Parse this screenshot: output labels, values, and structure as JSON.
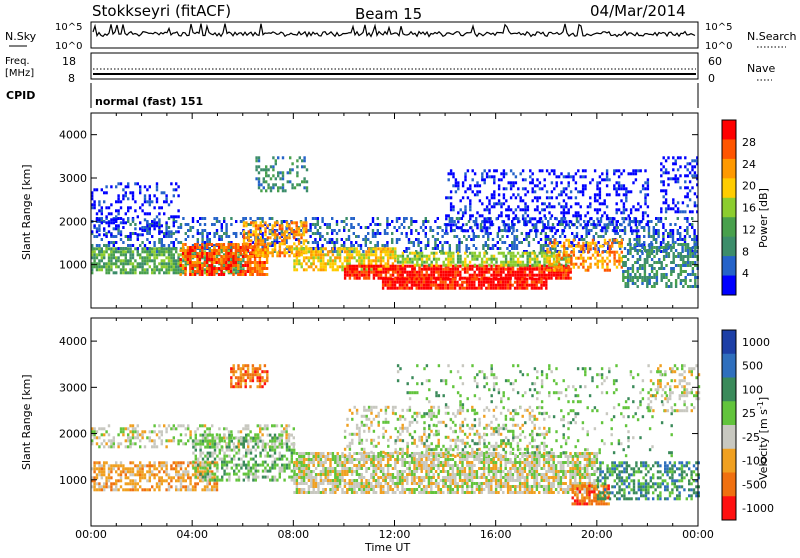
{
  "header": {
    "station": "Stokkseyri (fitACF)",
    "beam": "Beam 15",
    "date": "04/Mar/2014"
  },
  "noise_panel": {
    "left_label": "N.Sky",
    "right_label": "N.Search",
    "left_ticks": [
      "10^5",
      "10^0"
    ],
    "right_ticks": [
      "10^5",
      "10^0"
    ]
  },
  "freq_panel": {
    "left_label_1": "Freq.",
    "left_label_2": "[MHz]",
    "right_label": "Nave",
    "left_ticks": [
      "18",
      "8"
    ],
    "right_ticks": [
      "60",
      "0"
    ]
  },
  "cpid_panel": {
    "label": "CPID",
    "value": "normal (fast) 151"
  },
  "colors": {
    "power": [
      "#0000ff",
      "#2563c9",
      "#3c8d6a",
      "#48a04c",
      "#8ccd2f",
      "#ffcc00",
      "#ff9900",
      "#ff5500",
      "#ff0000"
    ],
    "velocity": [
      "#1d3fa6",
      "#2f6fbd",
      "#3a8a5a",
      "#62c43c",
      "#c8c8c0",
      "#f0a020",
      "#f07010",
      "#ff1010"
    ]
  },
  "chart_data": [
    {
      "type": "heatmap",
      "name": "power",
      "ylabel": "Slant Range [km]",
      "ylim": [
        0,
        4500
      ],
      "yticks": [
        1000,
        2000,
        3000,
        4000
      ],
      "xlim": [
        0,
        24
      ],
      "x_ticks": [
        "00:00",
        "04:00",
        "08:00",
        "12:00",
        "16:00",
        "20:00",
        "00:00"
      ],
      "colorbar": {
        "label": "Power [dB]",
        "ticks": [
          "4",
          "8",
          "12",
          "16",
          "20",
          "24",
          "28"
        ],
        "range": [
          0,
          30
        ]
      },
      "regions": [
        {
          "t0": 0.0,
          "t1": 24.0,
          "r0": 1300,
          "r1": 2100,
          "level": 1,
          "density": 0.35
        },
        {
          "t0": 0.0,
          "t1": 3.5,
          "r0": 1700,
          "r1": 2900,
          "level": 0,
          "density": 0.25
        },
        {
          "t0": 0.0,
          "t1": 6.0,
          "r0": 800,
          "r1": 1400,
          "level": 3,
          "density": 0.7
        },
        {
          "t0": 3.5,
          "t1": 7.0,
          "r0": 800,
          "r1": 1500,
          "level": 7,
          "density": 0.7
        },
        {
          "t0": 6.0,
          "t1": 8.5,
          "r0": 1200,
          "r1": 2000,
          "level": 6,
          "density": 0.55
        },
        {
          "t0": 6.5,
          "t1": 8.5,
          "r0": 2700,
          "r1": 3500,
          "level": 2,
          "density": 0.4
        },
        {
          "t0": 8.0,
          "t1": 12.0,
          "r0": 900,
          "r1": 1400,
          "level": 5,
          "density": 0.7
        },
        {
          "t0": 10.0,
          "t1": 19.0,
          "r0": 700,
          "r1": 1000,
          "level": 8,
          "density": 0.85
        },
        {
          "t0": 11.5,
          "t1": 18.0,
          "r0": 450,
          "r1": 700,
          "level": 8,
          "density": 0.9
        },
        {
          "t0": 12.0,
          "t1": 19.0,
          "r0": 1000,
          "r1": 1300,
          "level": 4,
          "density": 0.6
        },
        {
          "t0": 14.0,
          "t1": 22.0,
          "r0": 1800,
          "r1": 3200,
          "level": 0,
          "density": 0.3
        },
        {
          "t0": 18.0,
          "t1": 21.0,
          "r0": 900,
          "r1": 1600,
          "level": 6,
          "density": 0.5
        },
        {
          "t0": 21.0,
          "t1": 24.0,
          "r0": 500,
          "r1": 1500,
          "level": 2,
          "density": 0.55
        },
        {
          "t0": 22.5,
          "t1": 24.0,
          "r0": 2200,
          "r1": 3500,
          "level": 0,
          "density": 0.3
        }
      ]
    },
    {
      "type": "heatmap",
      "name": "velocity",
      "ylabel": "Slant Range [km]",
      "ylim": [
        0,
        4500
      ],
      "yticks": [
        1000,
        2000,
        3000,
        4000
      ],
      "xlim": [
        0,
        24
      ],
      "x_ticks": [
        "00:00",
        "04:00",
        "08:00",
        "12:00",
        "16:00",
        "20:00",
        "00:00"
      ],
      "xlabel": "Time UT",
      "colorbar": {
        "label": "Velocity [m s^-1]",
        "ticks": [
          "1000",
          "500",
          "100",
          "25",
          "-25",
          "-100",
          "-500",
          "-1000"
        ]
      },
      "regions": [
        {
          "t0": 0.0,
          "t1": 8.0,
          "r0": 1700,
          "r1": 2200,
          "level": 4,
          "density": 0.4
        },
        {
          "t0": 0.0,
          "t1": 5.0,
          "r0": 800,
          "r1": 1400,
          "level": 5,
          "density": 0.6
        },
        {
          "t0": 4.0,
          "t1": 8.0,
          "r0": 1000,
          "r1": 2000,
          "level": 3,
          "density": 0.5
        },
        {
          "t0": 5.5,
          "t1": 7.0,
          "r0": 3000,
          "r1": 3500,
          "level": 6,
          "density": 0.6
        },
        {
          "t0": 8.0,
          "t1": 20.0,
          "r0": 700,
          "r1": 1600,
          "level": 4,
          "density": 0.75
        },
        {
          "t0": 10.0,
          "t1": 18.0,
          "r0": 1500,
          "r1": 2600,
          "level": 4,
          "density": 0.25
        },
        {
          "t0": 12.0,
          "t1": 23.0,
          "r0": 1500,
          "r1": 3500,
          "level": 3,
          "density": 0.12
        },
        {
          "t0": 19.0,
          "t1": 20.5,
          "r0": 500,
          "r1": 900,
          "level": 6,
          "density": 0.7
        },
        {
          "t0": 20.0,
          "t1": 24.0,
          "r0": 600,
          "r1": 1400,
          "level": 2,
          "density": 0.5
        },
        {
          "t0": 22.0,
          "t1": 24.0,
          "r0": 2500,
          "r1": 3500,
          "level": 4,
          "density": 0.3
        }
      ]
    }
  ]
}
